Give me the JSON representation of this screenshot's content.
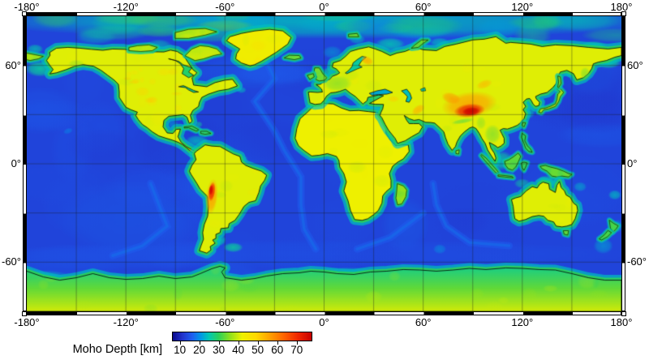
{
  "figure": {
    "kind": "global moho depth map",
    "background": "#ffffff",
    "frame_style": "alternating black/white checker frame, 30 degree segments"
  },
  "axes": {
    "top": [
      "-180°",
      "-120°",
      "-60°",
      "0°",
      "60°",
      "120°",
      "180°"
    ],
    "bottom": [
      "-180°",
      "-120°",
      "-60°",
      "0°",
      "60°",
      "120°",
      "180°"
    ],
    "left": [
      "60°",
      "0°",
      "-60°"
    ],
    "right": [
      "60°",
      "0°",
      "-60°"
    ]
  },
  "colorbar": {
    "label": "Moho Depth [km]",
    "ticks": [
      "10",
      "20",
      "30",
      "40",
      "50",
      "60",
      "70"
    ]
  },
  "chart_data": {
    "type": "heatmap",
    "title": "Moho Depth [km]",
    "projection": "equirectangular",
    "lon_range": [
      -180,
      180
    ],
    "lat_range": [
      -90,
      90
    ],
    "lon_ticks": [
      -180,
      -120,
      -60,
      0,
      60,
      120,
      180
    ],
    "lat_ticks": [
      60,
      0,
      -60
    ],
    "grid_interval_deg": 30,
    "legend_position": "bottom-left",
    "colorbar": {
      "label": "Moho Depth [km]",
      "ticks": [
        10,
        20,
        30,
        40,
        50,
        60,
        70
      ],
      "range_est": [
        6,
        78
      ],
      "colormap_stops": [
        [
          0.0,
          "#0a0a8c"
        ],
        [
          0.07,
          "#2233cc"
        ],
        [
          0.14,
          "#1e5ef0"
        ],
        [
          0.2,
          "#0096e6"
        ],
        [
          0.26,
          "#00c8b4"
        ],
        [
          0.33,
          "#2ad05a"
        ],
        [
          0.41,
          "#8ce01e"
        ],
        [
          0.5,
          "#eef000"
        ],
        [
          0.6,
          "#ffd800"
        ],
        [
          0.7,
          "#ffa000"
        ],
        [
          0.8,
          "#ff6400"
        ],
        [
          0.9,
          "#f02800"
        ],
        [
          1.0,
          "#c80000"
        ]
      ]
    },
    "typical_values_km": {
      "ocean_basins": 12,
      "continental_shelves": 25,
      "continental_interiors": 41,
      "antarctica_interior": 40
    },
    "features": [
      {
        "name": "tibetan-plateau-halo",
        "lon": 88,
        "lat": 36,
        "rx_deg": 17,
        "ry_deg": 8,
        "rot_deg": -8,
        "depth_km": 57,
        "alpha": 0.8
      },
      {
        "name": "tien-shan-pamir",
        "lon": 77,
        "lat": 40,
        "rx_deg": 6,
        "ry_deg": 3.5,
        "rot_deg": 15,
        "depth_km": 58,
        "alpha": 0.7
      },
      {
        "name": "tibetan-plateau",
        "lon": 88,
        "lat": 32.5,
        "rx_deg": 9.5,
        "ry_deg": 4.2,
        "rot_deg": -6,
        "depth_km": 72,
        "alpha": 0.95
      },
      {
        "name": "tibetan-plateau-core",
        "lon": 89,
        "lat": 32,
        "rx_deg": 5.5,
        "ry_deg": 2.6,
        "rot_deg": -6,
        "depth_km": 77,
        "alpha": 1
      },
      {
        "name": "altai-mongolia",
        "lon": 97,
        "lat": 48.5,
        "rx_deg": 5,
        "ry_deg": 2.6,
        "rot_deg": -20,
        "depth_km": 54,
        "alpha": 0.65
      },
      {
        "name": "zagros-iran",
        "lon": 57,
        "lat": 33,
        "rx_deg": 4.5,
        "ry_deg": 2.6,
        "rot_deg": -35,
        "depth_km": 55,
        "alpha": 0.7
      },
      {
        "name": "anatolia-caucasus",
        "lon": 42,
        "lat": 39.5,
        "rx_deg": 3.5,
        "ry_deg": 2,
        "rot_deg": 0,
        "depth_km": 51,
        "alpha": 0.55
      },
      {
        "name": "baltic-shield-finland",
        "lon": 26,
        "lat": 63,
        "rx_deg": 4,
        "ry_deg": 2.6,
        "rot_deg": 25,
        "depth_km": 56,
        "alpha": 0.75
      },
      {
        "name": "greenland-interior",
        "lon": -40,
        "lat": 72,
        "rx_deg": 5,
        "ry_deg": 3.5,
        "rot_deg": 0,
        "depth_km": 47,
        "alpha": 0.4
      },
      {
        "name": "andes-altiplano-halo",
        "lon": -68,
        "lat": -20,
        "rx_deg": 3.6,
        "ry_deg": 11,
        "rot_deg": 6,
        "depth_km": 57,
        "alpha": 0.85
      },
      {
        "name": "andes-altiplano",
        "lon": -68,
        "lat": -17,
        "rx_deg": 2.1,
        "ry_deg": 6,
        "rot_deg": 8,
        "depth_km": 71,
        "alpha": 1
      },
      {
        "name": "andes-core",
        "lon": -68.5,
        "lat": -16,
        "rx_deg": 1.3,
        "ry_deg": 3.2,
        "rot_deg": 8,
        "depth_km": 76,
        "alpha": 1
      },
      {
        "name": "rocky-mountains",
        "lon": -110,
        "lat": 44,
        "rx_deg": 4.5,
        "ry_deg": 3,
        "rot_deg": 0,
        "depth_km": 50,
        "alpha": 0.45
      },
      {
        "name": "colorado-plateau",
        "lon": -104,
        "lat": 39,
        "rx_deg": 3.5,
        "ry_deg": 2.2,
        "rot_deg": 0,
        "depth_km": 51,
        "alpha": 0.5
      },
      {
        "name": "canadian-shield-west",
        "lon": -97,
        "lat": 56,
        "rx_deg": 4.5,
        "ry_deg": 2.6,
        "rot_deg": 0,
        "depth_km": 49,
        "alpha": 0.4
      }
    ]
  }
}
